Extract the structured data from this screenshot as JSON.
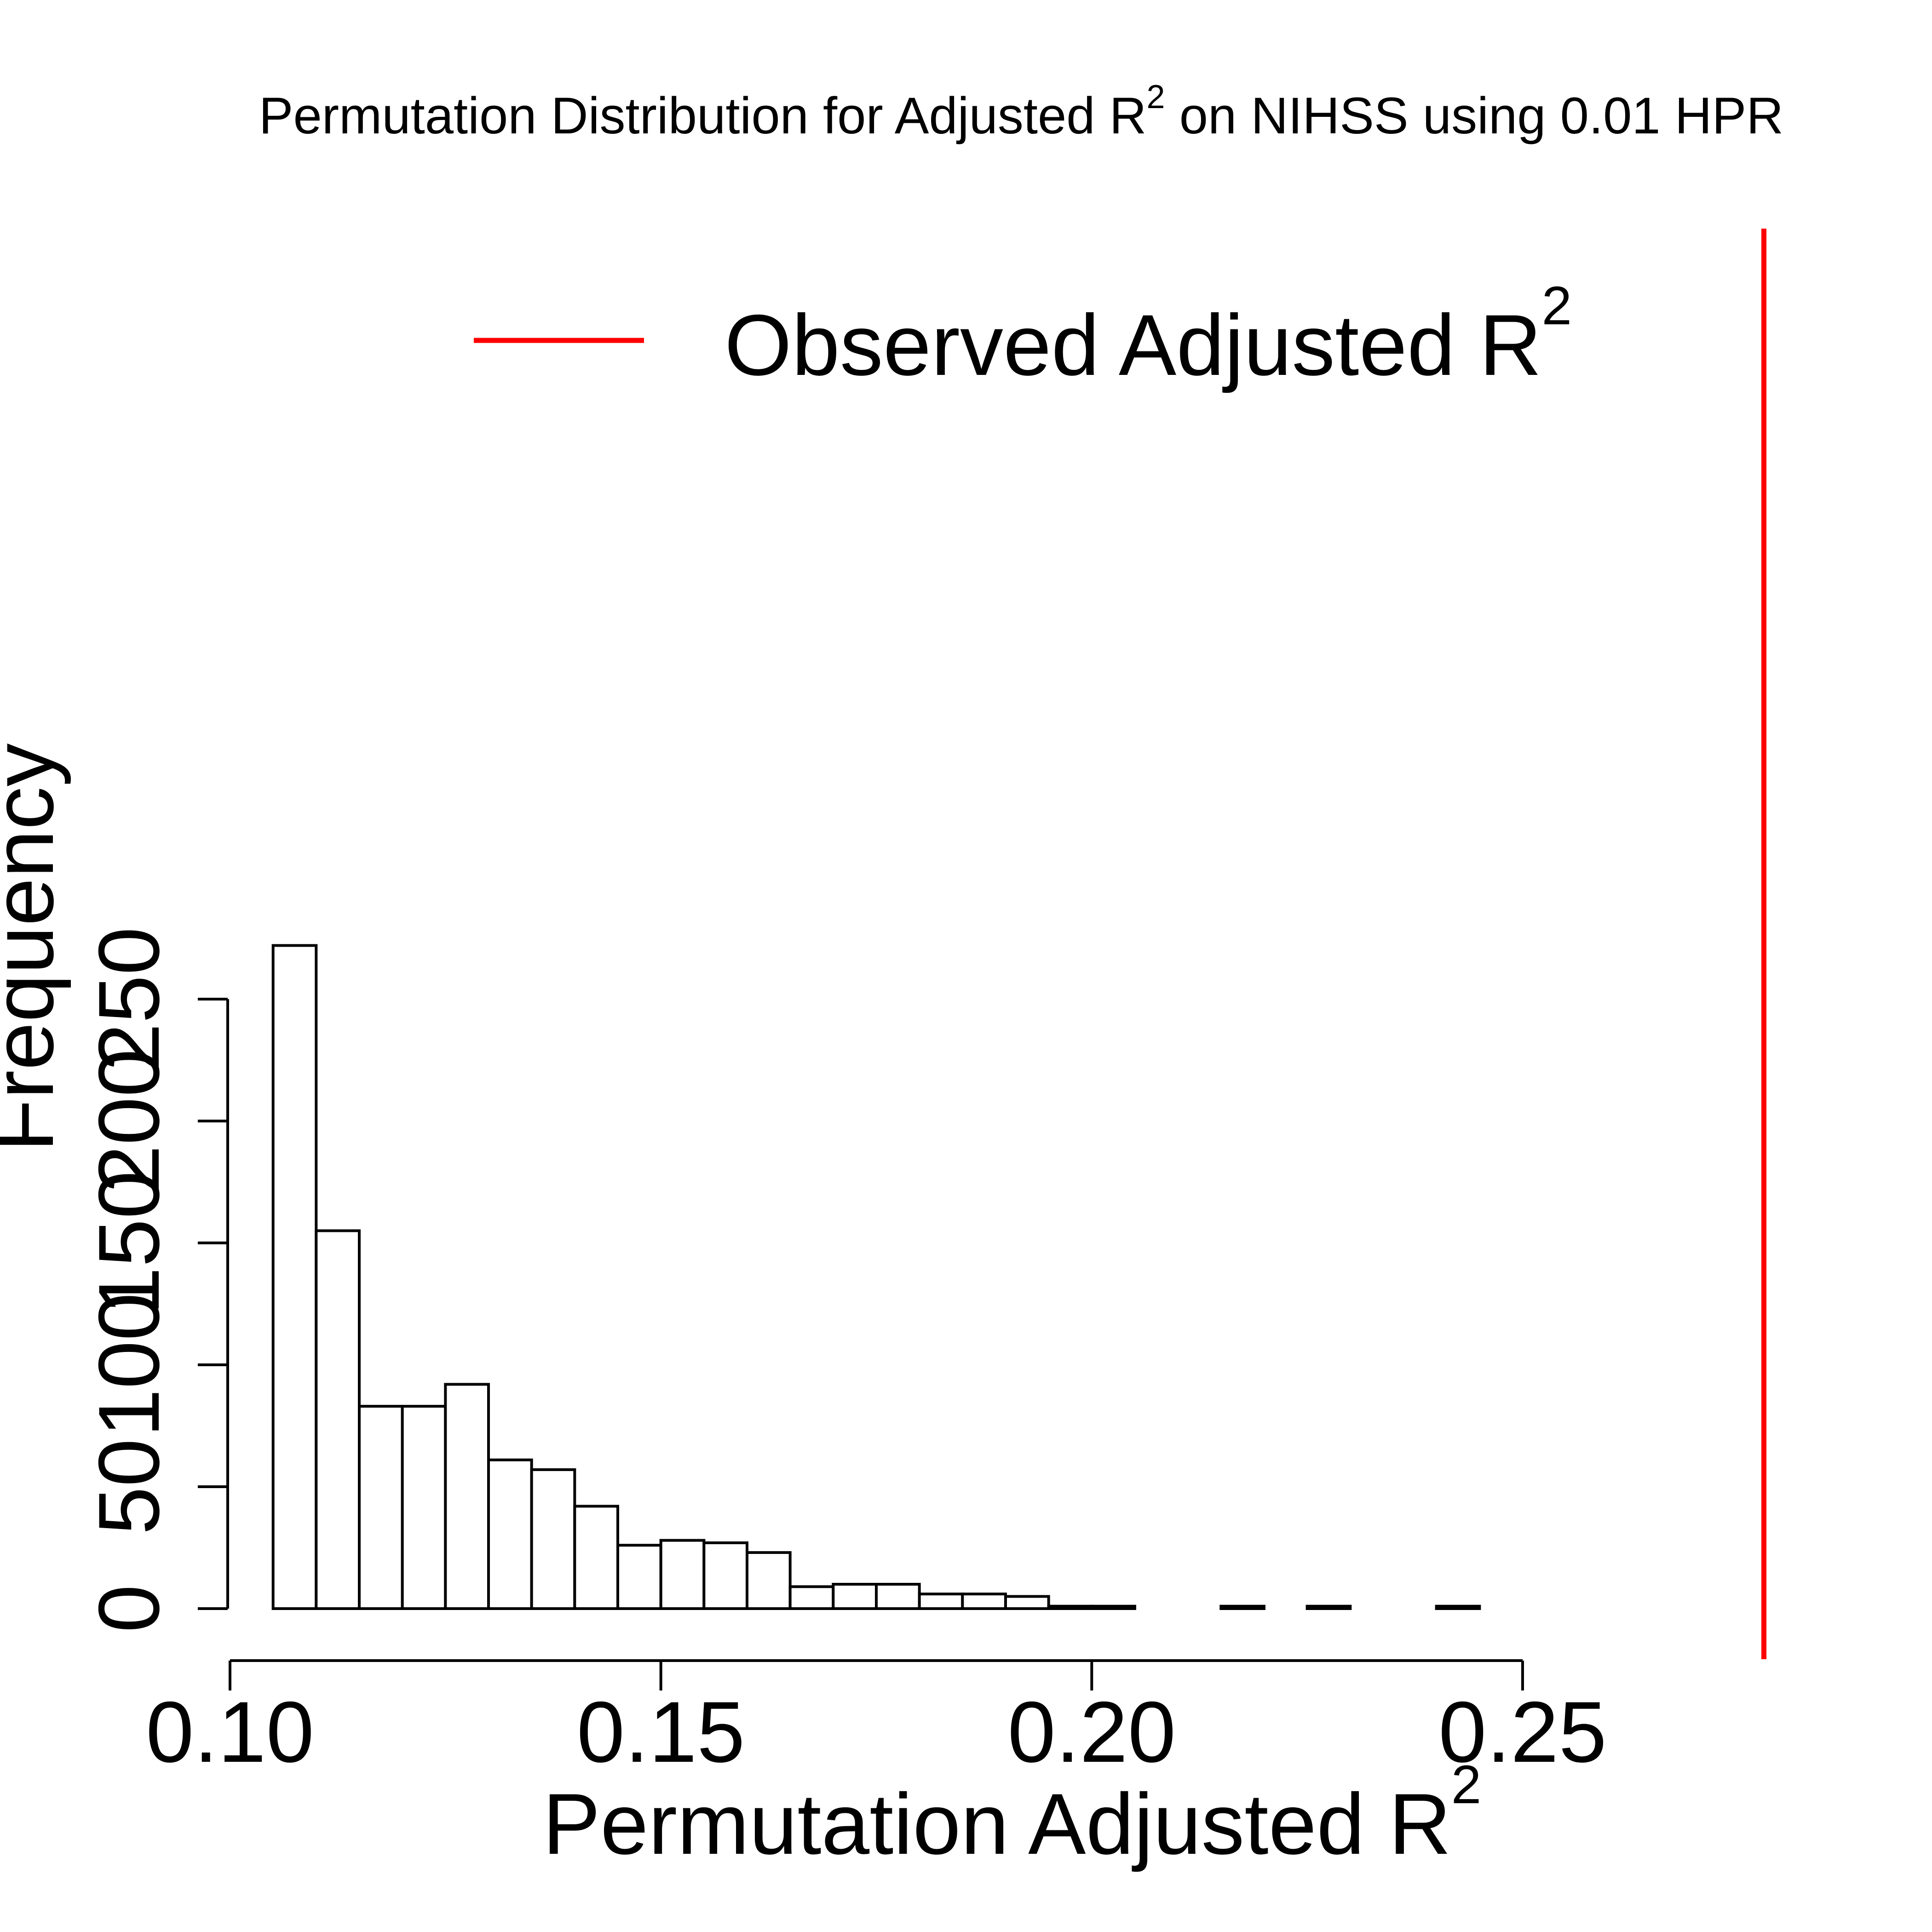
{
  "chart_data": {
    "type": "bar",
    "title": "Permutation Distribution for Adjusted R",
    "title_superscript": "2",
    "title_suffix": " on NIHSS using 0.01 HPR",
    "xlabel": "Permutation Adjusted R",
    "xlabel_superscript": "2",
    "ylabel": "Frequency",
    "xlim": [
      0.1,
      0.25
    ],
    "ylim": [
      0,
      275
    ],
    "x_ticks": [
      0.1,
      0.15,
      0.2,
      0.25
    ],
    "x_tick_labels": [
      "0.10",
      "0.15",
      "0.20",
      "0.25"
    ],
    "y_ticks": [
      0,
      50,
      100,
      150,
      200,
      250
    ],
    "y_tick_labels": [
      "0",
      "50",
      "100",
      "150",
      "200",
      "250"
    ],
    "bin_width": 0.005,
    "bins": [
      {
        "x0": 0.105,
        "x1": 0.11,
        "count": 272
      },
      {
        "x0": 0.11,
        "x1": 0.115,
        "count": 155
      },
      {
        "x0": 0.115,
        "x1": 0.12,
        "count": 83
      },
      {
        "x0": 0.12,
        "x1": 0.125,
        "count": 83
      },
      {
        "x0": 0.125,
        "x1": 0.13,
        "count": 92
      },
      {
        "x0": 0.13,
        "x1": 0.135,
        "count": 61
      },
      {
        "x0": 0.135,
        "x1": 0.14,
        "count": 57
      },
      {
        "x0": 0.14,
        "x1": 0.145,
        "count": 42
      },
      {
        "x0": 0.145,
        "x1": 0.15,
        "count": 26
      },
      {
        "x0": 0.15,
        "x1": 0.155,
        "count": 28
      },
      {
        "x0": 0.155,
        "x1": 0.16,
        "count": 27
      },
      {
        "x0": 0.16,
        "x1": 0.165,
        "count": 23
      },
      {
        "x0": 0.165,
        "x1": 0.17,
        "count": 9
      },
      {
        "x0": 0.17,
        "x1": 0.175,
        "count": 10
      },
      {
        "x0": 0.175,
        "x1": 0.18,
        "count": 10
      },
      {
        "x0": 0.18,
        "x1": 0.185,
        "count": 6
      },
      {
        "x0": 0.185,
        "x1": 0.19,
        "count": 6
      },
      {
        "x0": 0.19,
        "x1": 0.195,
        "count": 5
      },
      {
        "x0": 0.195,
        "x1": 0.2,
        "count": 1
      },
      {
        "x0": 0.2,
        "x1": 0.205,
        "count": 1
      },
      {
        "x0": 0.205,
        "x1": 0.21,
        "count": 0
      },
      {
        "x0": 0.21,
        "x1": 0.215,
        "count": 0
      },
      {
        "x0": 0.215,
        "x1": 0.22,
        "count": 1
      },
      {
        "x0": 0.22,
        "x1": 0.225,
        "count": 0
      },
      {
        "x0": 0.225,
        "x1": 0.23,
        "count": 1
      },
      {
        "x0": 0.23,
        "x1": 0.235,
        "count": 0
      },
      {
        "x0": 0.235,
        "x1": 0.24,
        "count": 0
      },
      {
        "x0": 0.24,
        "x1": 0.245,
        "count": 1
      }
    ],
    "observed_value": 0.278,
    "observed_color": "#ff0000",
    "legend": {
      "placement": "top-right",
      "label": "Observed Adjusted R",
      "label_superscript": "2"
    },
    "grid": false
  }
}
